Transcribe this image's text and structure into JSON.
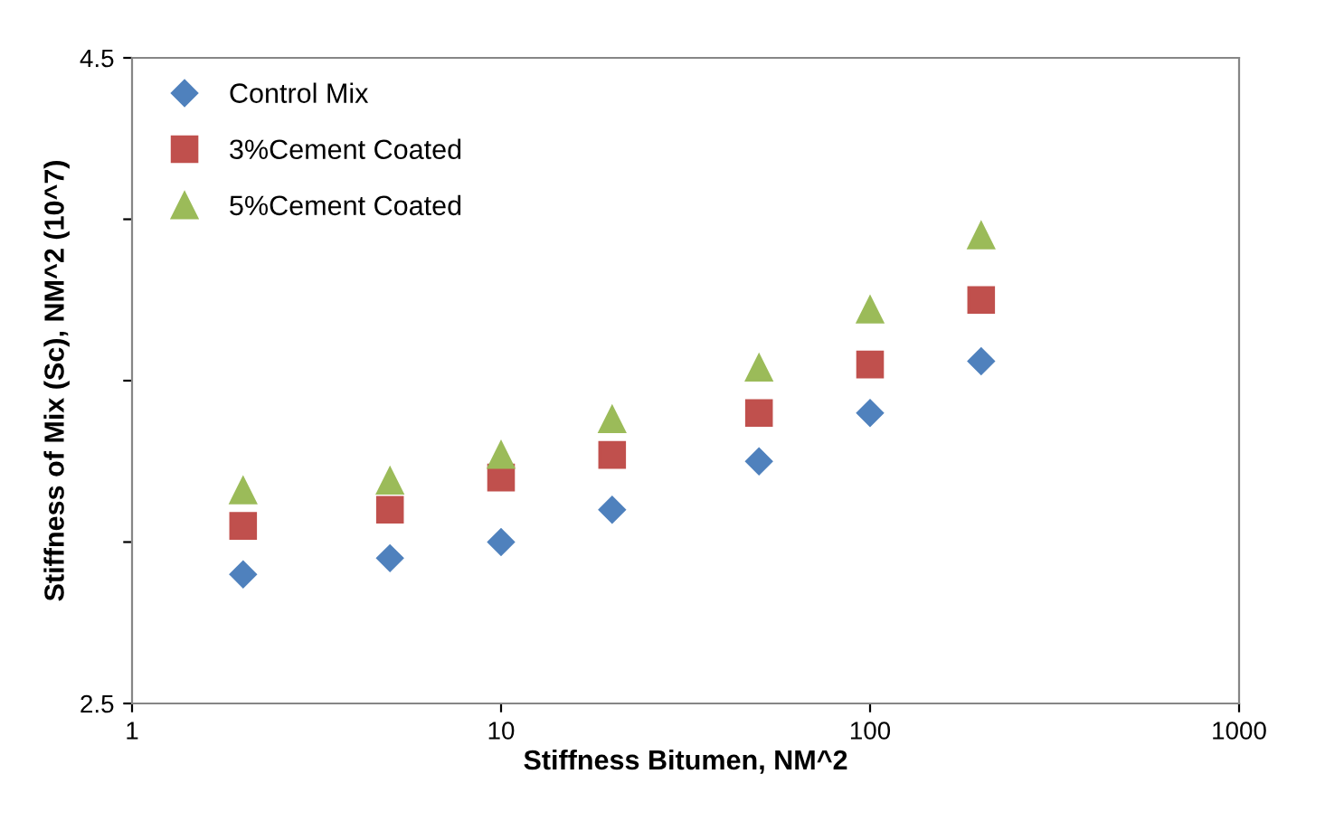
{
  "chart_data": {
    "type": "scatter",
    "xlabel": "Stiffness Bitumen, NM^2",
    "ylabel": "Stiffness of Mix (Sc), NM^2 (10^7)",
    "log": "x",
    "xlim": [
      1,
      1000
    ],
    "xticks": [
      1,
      10,
      100,
      1000
    ],
    "ylim": [
      2.5,
      4.5
    ],
    "yticks": [
      2.5,
      {
        "value": 3.0,
        "label": null
      },
      {
        "value": 3.5,
        "label": null
      },
      {
        "value": 4.0,
        "label": null
      },
      4.5
    ],
    "x": [
      2,
      5,
      10,
      20,
      50,
      100,
      200
    ],
    "grid": false,
    "legend": "top left",
    "series": [
      {
        "name": "Control Mix",
        "color": "#4f81bd",
        "marker": "diamond",
        "values": [
          2.9,
          2.95,
          3.0,
          3.1,
          3.25,
          3.4,
          3.56
        ]
      },
      {
        "name": "3%Cement Coated",
        "color": "#c0504d",
        "marker": "square",
        "values": [
          3.05,
          3.1,
          3.2,
          3.27,
          3.4,
          3.55,
          3.75
        ]
      },
      {
        "name": "5%Cement Coated",
        "color": "#9bbb59",
        "marker": "triangle",
        "values": [
          3.16,
          3.19,
          3.27,
          3.38,
          3.54,
          3.72,
          3.95
        ]
      }
    ]
  }
}
